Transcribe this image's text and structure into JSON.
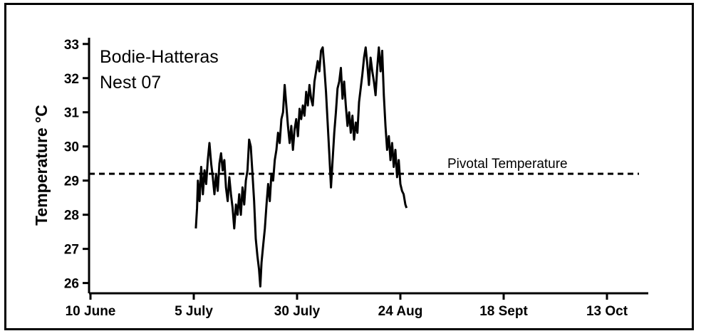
{
  "chart_data": {
    "type": "line",
    "annotation_lines": [
      "Bodie-Hatteras",
      "Nest 07"
    ],
    "ylabel": "Temperature °C",
    "xlabel": "",
    "x_ticks": [
      {
        "label": "10 June",
        "day": 0
      },
      {
        "label": "5 July",
        "day": 25
      },
      {
        "label": "30 July",
        "day": 50
      },
      {
        "label": "24 Aug",
        "day": 75
      },
      {
        "label": "18 Sept",
        "day": 100
      },
      {
        "label": "13 Oct",
        "day": 125
      }
    ],
    "x_range_days": [
      0,
      135
    ],
    "y_ticks": [
      26,
      27,
      28,
      29,
      30,
      31,
      32,
      33
    ],
    "ylim": [
      25.7,
      33.1
    ],
    "reference_line": {
      "label": "Pivotal Temperature",
      "value": 29.2
    },
    "series": [
      {
        "color": "#000000",
        "points": [
          [
            25.5,
            27.6
          ],
          [
            25.8,
            28.2
          ],
          [
            26.0,
            29.0
          ],
          [
            26.4,
            28.4
          ],
          [
            26.8,
            29.4
          ],
          [
            27.2,
            28.6
          ],
          [
            27.6,
            29.3
          ],
          [
            28.0,
            28.9
          ],
          [
            28.4,
            29.6
          ],
          [
            28.8,
            30.1
          ],
          [
            29.2,
            29.5
          ],
          [
            29.6,
            29.1
          ],
          [
            30.0,
            28.6
          ],
          [
            30.4,
            29.2
          ],
          [
            30.8,
            28.7
          ],
          [
            31.2,
            29.5
          ],
          [
            31.6,
            29.8
          ],
          [
            32.0,
            29.3
          ],
          [
            32.4,
            29.6
          ],
          [
            32.8,
            28.8
          ],
          [
            33.2,
            28.4
          ],
          [
            33.6,
            29.1
          ],
          [
            34.0,
            28.6
          ],
          [
            34.4,
            28.2
          ],
          [
            34.8,
            27.6
          ],
          [
            35.2,
            28.3
          ],
          [
            35.6,
            28.0
          ],
          [
            36.0,
            28.6
          ],
          [
            36.4,
            28.0
          ],
          [
            36.8,
            28.8
          ],
          [
            37.2,
            28.3
          ],
          [
            37.6,
            29.0
          ],
          [
            38.0,
            29.3
          ],
          [
            38.4,
            30.2
          ],
          [
            38.8,
            30.0
          ],
          [
            39.2,
            29.2
          ],
          [
            39.6,
            28.4
          ],
          [
            40.0,
            27.3
          ],
          [
            40.4,
            26.8
          ],
          [
            40.8,
            26.4
          ],
          [
            41.1,
            25.9
          ],
          [
            41.4,
            26.6
          ],
          [
            41.8,
            27.1
          ],
          [
            42.2,
            27.6
          ],
          [
            42.6,
            28.3
          ],
          [
            43.0,
            28.9
          ],
          [
            43.4,
            28.4
          ],
          [
            43.8,
            29.2
          ],
          [
            44.2,
            29.0
          ],
          [
            44.6,
            29.6
          ],
          [
            45.0,
            29.9
          ],
          [
            45.4,
            30.4
          ],
          [
            45.8,
            30.1
          ],
          [
            46.2,
            30.8
          ],
          [
            46.6,
            31.0
          ],
          [
            47.0,
            31.8
          ],
          [
            47.4,
            31.2
          ],
          [
            47.8,
            30.6
          ],
          [
            48.2,
            30.1
          ],
          [
            48.6,
            30.6
          ],
          [
            49.0,
            29.9
          ],
          [
            49.4,
            30.5
          ],
          [
            49.8,
            30.8
          ],
          [
            50.2,
            30.3
          ],
          [
            50.6,
            31.1
          ],
          [
            51.0,
            30.8
          ],
          [
            51.4,
            31.2
          ],
          [
            51.8,
            30.9
          ],
          [
            52.2,
            31.6
          ],
          [
            52.6,
            31.2
          ],
          [
            53.0,
            31.8
          ],
          [
            53.4,
            31.4
          ],
          [
            53.8,
            31.2
          ],
          [
            54.2,
            31.9
          ],
          [
            54.6,
            32.2
          ],
          [
            55.0,
            32.5
          ],
          [
            55.4,
            32.2
          ],
          [
            55.8,
            32.8
          ],
          [
            56.2,
            32.9
          ],
          [
            56.6,
            32.3
          ],
          [
            57.0,
            31.6
          ],
          [
            57.4,
            30.7
          ],
          [
            57.8,
            29.8
          ],
          [
            58.2,
            28.8
          ],
          [
            58.6,
            29.6
          ],
          [
            59.0,
            30.4
          ],
          [
            59.4,
            31.0
          ],
          [
            59.8,
            31.7
          ],
          [
            60.2,
            31.9
          ],
          [
            60.6,
            32.3
          ],
          [
            61.0,
            31.4
          ],
          [
            61.4,
            31.9
          ],
          [
            61.8,
            31.2
          ],
          [
            62.2,
            30.6
          ],
          [
            62.6,
            31.0
          ],
          [
            63.0,
            30.4
          ],
          [
            63.4,
            30.9
          ],
          [
            63.8,
            30.2
          ],
          [
            64.2,
            30.7
          ],
          [
            64.6,
            30.4
          ],
          [
            65.0,
            31.3
          ],
          [
            65.4,
            31.7
          ],
          [
            65.8,
            32.1
          ],
          [
            66.2,
            32.6
          ],
          [
            66.6,
            32.9
          ],
          [
            67.0,
            32.4
          ],
          [
            67.4,
            31.8
          ],
          [
            67.8,
            32.6
          ],
          [
            68.2,
            32.2
          ],
          [
            68.6,
            31.9
          ],
          [
            69.0,
            31.5
          ],
          [
            69.4,
            32.3
          ],
          [
            69.8,
            32.9
          ],
          [
            70.2,
            32.2
          ],
          [
            70.6,
            32.8
          ],
          [
            71.0,
            31.5
          ],
          [
            71.4,
            30.6
          ],
          [
            71.8,
            29.9
          ],
          [
            72.2,
            30.3
          ],
          [
            72.6,
            29.6
          ],
          [
            73.0,
            30.1
          ],
          [
            73.4,
            29.4
          ],
          [
            73.8,
            29.9
          ],
          [
            74.2,
            29.1
          ],
          [
            74.6,
            29.6
          ],
          [
            75.0,
            28.9
          ],
          [
            75.4,
            28.7
          ],
          [
            75.8,
            28.6
          ],
          [
            76.2,
            28.3
          ],
          [
            76.5,
            28.2
          ]
        ]
      }
    ]
  }
}
